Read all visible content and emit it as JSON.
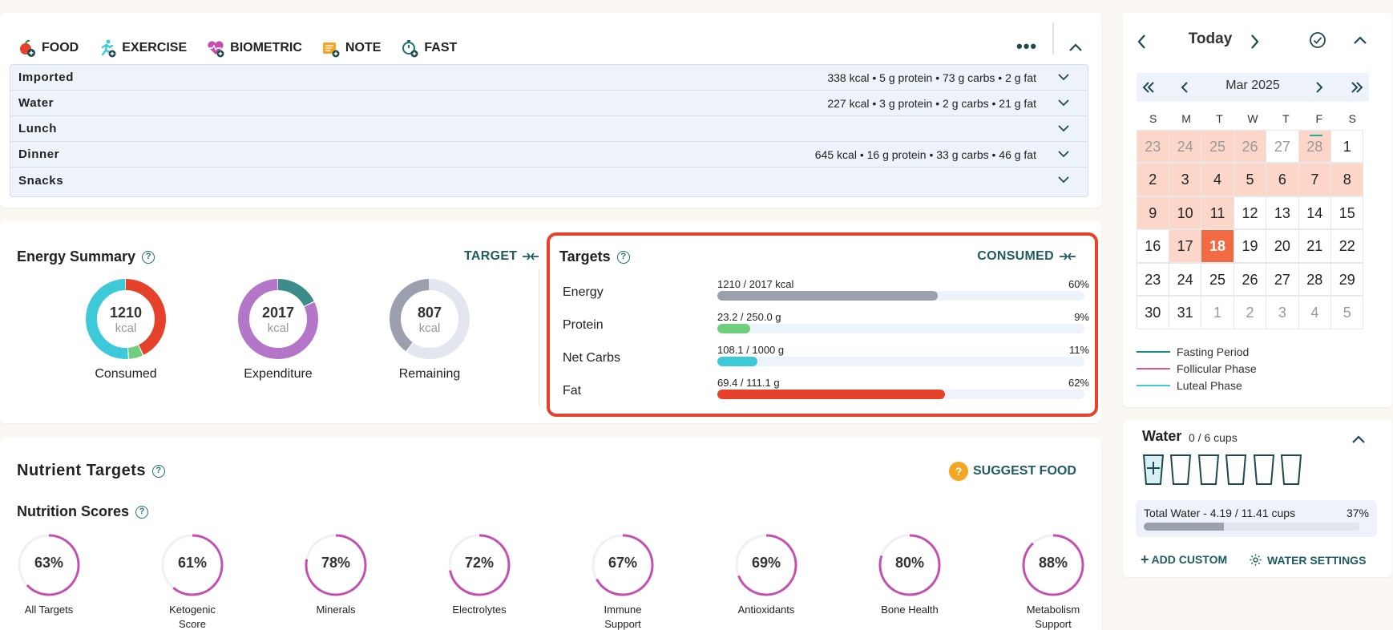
{
  "toolbar": {
    "buttons": [
      {
        "id": "food",
        "label": "FOOD",
        "icon": "apple-add-icon"
      },
      {
        "id": "exercise",
        "label": "EXERCISE",
        "icon": "runner-add-icon"
      },
      {
        "id": "biometric",
        "label": "BIOMETRIC",
        "icon": "heart-pulse-add-icon"
      },
      {
        "id": "note",
        "label": "NOTE",
        "icon": "note-add-icon"
      },
      {
        "id": "fast",
        "label": "FAST",
        "icon": "stopwatch-add-icon"
      }
    ]
  },
  "meals": [
    {
      "name": "Imported",
      "summary": "338 kcal • 5 g protein • 73 g carbs • 2 g fat"
    },
    {
      "name": "Water",
      "summary": "227 kcal • 3 g protein • 2 g carbs • 21 g fat"
    },
    {
      "name": "Lunch",
      "summary": ""
    },
    {
      "name": "Dinner",
      "summary": "645 kcal • 16 g protein • 33 g carbs • 46 g fat"
    },
    {
      "name": "Snacks",
      "summary": ""
    }
  ],
  "energy": {
    "title": "Energy Summary",
    "target_link": "TARGET",
    "consumed": {
      "value": "1210",
      "unit": "kcal",
      "label": "Consumed",
      "segments": [
        {
          "fraction": 0.43,
          "color": "#e5412b"
        },
        {
          "fraction": 0.06,
          "color": "#6fcf7c"
        },
        {
          "fraction": 0.51,
          "color": "#3ccad8"
        }
      ]
    },
    "expenditure": {
      "value": "2017",
      "unit": "kcal",
      "label": "Expenditure",
      "segments": [
        {
          "fraction": 0.18,
          "color": "#3b8c8a"
        },
        {
          "fraction": 0.82,
          "color": "#b476c8"
        }
      ]
    },
    "remaining": {
      "value": "807",
      "unit": "kcal",
      "label": "Remaining",
      "segments": [
        {
          "fraction": 0.6,
          "color": "#e3e6ee"
        },
        {
          "fraction": 0.4,
          "color": "#9c9fad"
        }
      ]
    }
  },
  "targets": {
    "title": "Targets",
    "consumed_link": "CONSUMED",
    "rows": [
      {
        "name": "Energy",
        "value": "1210 / 2017 kcal",
        "percent": "60%",
        "fraction": 0.6,
        "color": "#9c9fad"
      },
      {
        "name": "Protein",
        "value": "23.2 / 250.0 g",
        "percent": "9%",
        "fraction": 0.09,
        "color": "#6fcf7c"
      },
      {
        "name": "Net Carbs",
        "value": "108.1 / 1000 g",
        "percent": "11%",
        "fraction": 0.11,
        "color": "#3ccad8"
      },
      {
        "name": "Fat",
        "value": "69.4 / 111.1 g",
        "percent": "62%",
        "fraction": 0.62,
        "color": "#e5412b"
      }
    ]
  },
  "nutrients": {
    "title": "Nutrient Targets",
    "suggest_label": "SUGGEST FOOD",
    "scores_title": "Nutrition Scores",
    "scores": [
      {
        "value": "63%",
        "fraction": 0.63,
        "label": "All Targets"
      },
      {
        "value": "61%",
        "fraction": 0.61,
        "label": "Ketogenic Score"
      },
      {
        "value": "78%",
        "fraction": 0.78,
        "label": "Minerals"
      },
      {
        "value": "72%",
        "fraction": 0.72,
        "label": "Electrolytes"
      },
      {
        "value": "67%",
        "fraction": 0.67,
        "label": "Immune Support"
      },
      {
        "value": "69%",
        "fraction": 0.69,
        "label": "Antioxidants"
      },
      {
        "value": "80%",
        "fraction": 0.8,
        "label": "Bone Health"
      },
      {
        "value": "88%",
        "fraction": 0.88,
        "label": "Metabolism Support"
      }
    ]
  },
  "calendar": {
    "title": "Today",
    "month": "Mar 2025",
    "weekdays": [
      "S",
      "M",
      "T",
      "W",
      "T",
      "F",
      "S"
    ],
    "weeks": [
      [
        {
          "d": "23",
          "s": "pink other"
        },
        {
          "d": "24",
          "s": "pink other"
        },
        {
          "d": "25",
          "s": "pink other"
        },
        {
          "d": "26",
          "s": "pink other"
        },
        {
          "d": "27",
          "s": "other"
        },
        {
          "d": "28",
          "s": "pink other mark"
        },
        {
          "d": "1",
          "s": ""
        }
      ],
      [
        {
          "d": "2",
          "s": "pink"
        },
        {
          "d": "3",
          "s": "pink"
        },
        {
          "d": "4",
          "s": "pink"
        },
        {
          "d": "5",
          "s": "pink"
        },
        {
          "d": "6",
          "s": "pink"
        },
        {
          "d": "7",
          "s": "pink"
        },
        {
          "d": "8",
          "s": "pink"
        }
      ],
      [
        {
          "d": "9",
          "s": "pink"
        },
        {
          "d": "10",
          "s": "pink"
        },
        {
          "d": "11",
          "s": "pink"
        },
        {
          "d": "12",
          "s": ""
        },
        {
          "d": "13",
          "s": ""
        },
        {
          "d": "14",
          "s": ""
        },
        {
          "d": "15",
          "s": ""
        }
      ],
      [
        {
          "d": "16",
          "s": ""
        },
        {
          "d": "17",
          "s": "pink"
        },
        {
          "d": "18",
          "s": "today"
        },
        {
          "d": "19",
          "s": ""
        },
        {
          "d": "20",
          "s": ""
        },
        {
          "d": "21",
          "s": ""
        },
        {
          "d": "22",
          "s": ""
        }
      ],
      [
        {
          "d": "23",
          "s": ""
        },
        {
          "d": "24",
          "s": ""
        },
        {
          "d": "25",
          "s": ""
        },
        {
          "d": "26",
          "s": ""
        },
        {
          "d": "27",
          "s": ""
        },
        {
          "d": "28",
          "s": ""
        },
        {
          "d": "29",
          "s": ""
        }
      ],
      [
        {
          "d": "30",
          "s": ""
        },
        {
          "d": "31",
          "s": ""
        },
        {
          "d": "1",
          "s": "other"
        },
        {
          "d": "2",
          "s": "other"
        },
        {
          "d": "3",
          "s": "other"
        },
        {
          "d": "4",
          "s": "other"
        },
        {
          "d": "5",
          "s": "other"
        }
      ]
    ],
    "legend": [
      {
        "label": "Fasting Period",
        "color": "#1e8c8a"
      },
      {
        "label": "Follicular Phase",
        "color": "#d9559a"
      },
      {
        "label": "Luteal Phase",
        "color": "#3ccad8"
      }
    ]
  },
  "water": {
    "title": "Water",
    "cups_text": "0 / 6 cups",
    "cup_count": 6,
    "total_label": "Total Water - 4.19 / 11.41 cups",
    "total_percent": "37%",
    "total_fraction": 0.37,
    "add_custom": "ADD CUSTOM",
    "settings": "WATER SETTINGS"
  },
  "colors": {
    "accent": "#1e5c60",
    "highlight": "#e5412b",
    "today": "#f16a43",
    "score_ring": "#c44fb0"
  }
}
